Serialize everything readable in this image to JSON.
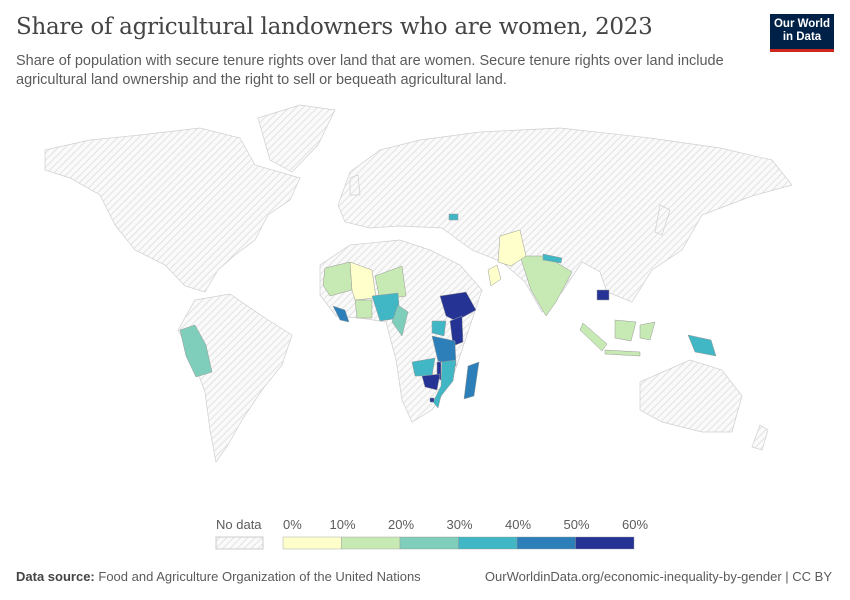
{
  "header": {
    "title": "Share of agricultural landowners who are women, 2023",
    "subtitle": "Share of population with secure tenure rights over land that are women. Secure tenure rights over land include agricultural land ownership and the right to sell or bequeath agricultural land.",
    "logo": "Our World in Data"
  },
  "legend": {
    "no_data_label": "No data",
    "ticks": [
      "0%",
      "10%",
      "20%",
      "30%",
      "40%",
      "50%",
      "60%"
    ],
    "bins": [
      {
        "range": "0-10%",
        "color": "#ffffcc"
      },
      {
        "range": "10-20%",
        "color": "#c7e9b4"
      },
      {
        "range": "20-30%",
        "color": "#7fcdbb"
      },
      {
        "range": "30-40%",
        "color": "#41b6c4"
      },
      {
        "range": "40-50%",
        "color": "#2c7fb8"
      },
      {
        "range": "50-60%",
        "color": "#253494"
      }
    ],
    "no_data_color": "#e6e6e6"
  },
  "map_data": [
    {
      "country": "Peru",
      "bin": 2
    },
    {
      "country": "Senegal/Guinea",
      "bin": 1
    },
    {
      "country": "Mali",
      "bin": 0
    },
    {
      "country": "Niger",
      "bin": 1
    },
    {
      "country": "Nigeria",
      "bin": 3
    },
    {
      "country": "Cameroon",
      "bin": 2
    },
    {
      "country": "Liberia",
      "bin": 4
    },
    {
      "country": "Ghana",
      "bin": 1
    },
    {
      "country": "Ethiopia",
      "bin": 5
    },
    {
      "country": "Kenya",
      "bin": 5
    },
    {
      "country": "Uganda",
      "bin": 3
    },
    {
      "country": "Tanzania",
      "bin": 4
    },
    {
      "country": "Malawi",
      "bin": 5
    },
    {
      "country": "Zambia",
      "bin": 3
    },
    {
      "country": "Zimbabwe",
      "bin": 5
    },
    {
      "country": "Mozambique",
      "bin": 3
    },
    {
      "country": "Madagascar",
      "bin": 4
    },
    {
      "country": "Eswatini",
      "bin": 5
    },
    {
      "country": "India",
      "bin": 1
    },
    {
      "country": "Pakistan",
      "bin": 0
    },
    {
      "country": "Nepal",
      "bin": 3
    },
    {
      "country": "Oman",
      "bin": 0
    },
    {
      "country": "Armenia",
      "bin": 3
    },
    {
      "country": "Cambodia",
      "bin": 5
    },
    {
      "country": "Indonesia",
      "bin": 1
    },
    {
      "country": "Papua New Guinea",
      "bin": 3
    }
  ],
  "footer": {
    "source_label": "Data source:",
    "source": "Food and Agriculture Organization of the United Nations",
    "url": "OurWorldinData.org/economic-inequality-by-gender | CC BY"
  }
}
